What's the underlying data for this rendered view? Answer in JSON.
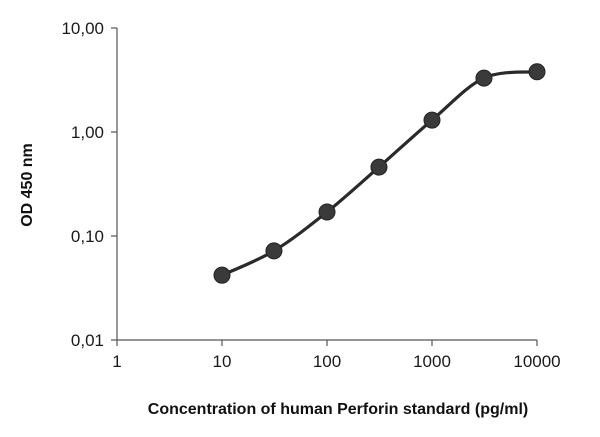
{
  "chart_data": {
    "type": "scatter",
    "title": "",
    "xlabel": "Concentration of human Perforin standard  (pg/ml)",
    "ylabel": "OD 450 nm",
    "x_scale": "log",
    "y_scale": "log",
    "xlim": [
      1,
      10000
    ],
    "ylim": [
      0.01,
      10
    ],
    "x_ticks": [
      "1",
      "10",
      "100",
      "1000",
      "10000"
    ],
    "y_ticks": [
      "0,01",
      "0,10",
      "1,00",
      "10,00"
    ],
    "grid": false,
    "legend": "none",
    "series": [
      {
        "x": [
          10,
          31.25,
          100,
          312.5,
          1000,
          3125,
          10000
        ],
        "y": [
          0.042,
          0.072,
          0.17,
          0.46,
          1.3,
          3.3,
          3.8
        ],
        "marker": "circle",
        "line": "smooth"
      }
    ],
    "colors": {
      "line": "#2a2a2a",
      "marker": "#3a3a3a",
      "axis": "#555555"
    }
  }
}
